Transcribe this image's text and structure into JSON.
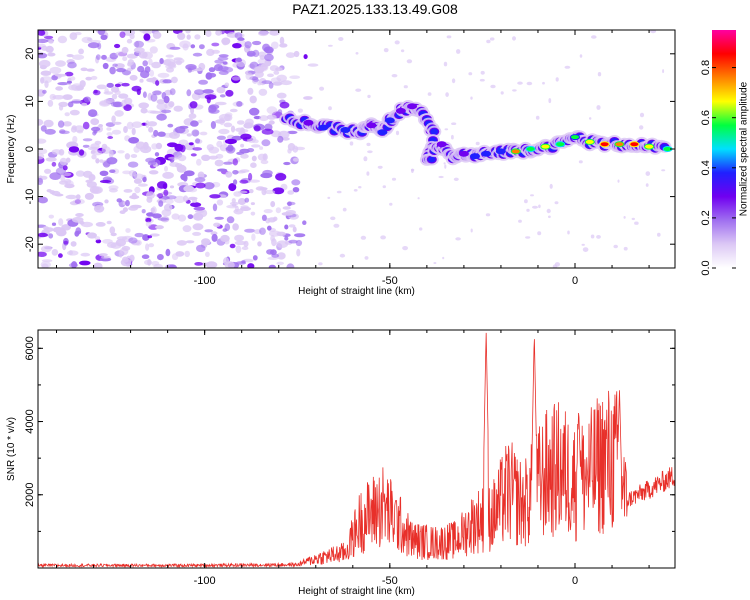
{
  "title": "PAZ1.2025.133.13.49.G08",
  "spectrogram": {
    "type": "heatmap",
    "xlabel": "Height of straight line (km)",
    "ylabel": "Frequency (Hz)",
    "xlim": [
      -145,
      27
    ],
    "ylim": [
      -25,
      25
    ],
    "xticks": [
      "-100",
      "-50",
      "0"
    ],
    "yticks": [
      "20",
      "10",
      "0",
      "-10",
      "-20"
    ],
    "colorbar": {
      "label": "Normalized spectral amplitude",
      "range": [
        0,
        0.95
      ],
      "ticks": [
        "0.0",
        "0.2",
        "0.4",
        "0.6",
        "0.8"
      ],
      "colormap": [
        "#ffffff",
        "#dcc8f5",
        "#a070f0",
        "#7000f0",
        "#2020ff",
        "#00e0ff",
        "#00ff40",
        "#ffff00",
        "#ff8000",
        "#ff0000",
        "#ff00a0"
      ]
    },
    "noise_region_km": [
      -145,
      -70
    ],
    "signal_track": [
      {
        "x": -78,
        "f": 6.0,
        "a": 0.35
      },
      {
        "x": -72,
        "f": 5.5,
        "a": 0.4
      },
      {
        "x": -68,
        "f": 4.5,
        "a": 0.45
      },
      {
        "x": -62,
        "f": 4.0,
        "a": 0.5
      },
      {
        "x": -58,
        "f": 3.5,
        "a": 0.35
      },
      {
        "x": -55,
        "f": 5.0,
        "a": 0.4
      },
      {
        "x": -52,
        "f": 3.5,
        "a": 0.45
      },
      {
        "x": -50,
        "f": 6.0,
        "a": 0.45
      },
      {
        "x": -47,
        "f": 8.0,
        "a": 0.4
      },
      {
        "x": -44,
        "f": 9.0,
        "a": 0.4
      },
      {
        "x": -41,
        "f": 7.0,
        "a": 0.35
      },
      {
        "x": -38,
        "f": 3.0,
        "a": 0.35
      },
      {
        "x": -40,
        "f": -3.0,
        "a": 0.35
      },
      {
        "x": -36,
        "f": 1.0,
        "a": 0.4
      },
      {
        "x": -33,
        "f": -2.0,
        "a": 0.35
      },
      {
        "x": -30,
        "f": -1.0,
        "a": 0.4
      },
      {
        "x": -27,
        "f": -1.5,
        "a": 0.45
      },
      {
        "x": -24,
        "f": -1.0,
        "a": 0.45
      },
      {
        "x": -20,
        "f": -0.5,
        "a": 0.5
      },
      {
        "x": -16,
        "f": -0.5,
        "a": 0.75
      },
      {
        "x": -12,
        "f": 0.0,
        "a": 0.6
      },
      {
        "x": -8,
        "f": 0.5,
        "a": 0.7
      },
      {
        "x": -4,
        "f": 1.0,
        "a": 0.6
      },
      {
        "x": 0,
        "f": 2.5,
        "a": 0.55
      },
      {
        "x": 4,
        "f": 1.5,
        "a": 0.7
      },
      {
        "x": 8,
        "f": 1.0,
        "a": 0.85
      },
      {
        "x": 12,
        "f": 1.0,
        "a": 0.8
      },
      {
        "x": 16,
        "f": 1.0,
        "a": 0.85
      },
      {
        "x": 20,
        "f": 0.5,
        "a": 0.7
      },
      {
        "x": 25,
        "f": 0.0,
        "a": 0.6
      }
    ]
  },
  "snr": {
    "type": "line",
    "xlabel": "Height of straight line (km)",
    "ylabel": "SNR (10 * v/v)",
    "xlim": [
      -145,
      27
    ],
    "ylim": [
      0,
      6500
    ],
    "xticks": [
      "-100",
      "-50",
      "0"
    ],
    "yticks": [
      "6000",
      "4000",
      "2000"
    ],
    "line_color": "#e8302a",
    "envelope": [
      {
        "x": -145,
        "y": 80
      },
      {
        "x": -100,
        "y": 80
      },
      {
        "x": -75,
        "y": 100
      },
      {
        "x": -70,
        "y": 300
      },
      {
        "x": -62,
        "y": 500
      },
      {
        "x": -58,
        "y": 1500
      },
      {
        "x": -52,
        "y": 2000
      },
      {
        "x": -48,
        "y": 1500
      },
      {
        "x": -44,
        "y": 900
      },
      {
        "x": -38,
        "y": 800
      },
      {
        "x": -32,
        "y": 900
      },
      {
        "x": -27,
        "y": 1500
      },
      {
        "x": -22,
        "y": 1700
      },
      {
        "x": -18,
        "y": 2500
      },
      {
        "x": -14,
        "y": 2000
      },
      {
        "x": -8,
        "y": 3000
      },
      {
        "x": -4,
        "y": 3200
      },
      {
        "x": 0,
        "y": 2800
      },
      {
        "x": 4,
        "y": 3000
      },
      {
        "x": 8,
        "y": 3500
      },
      {
        "x": 12,
        "y": 3400
      },
      {
        "x": 14,
        "y": 1900
      },
      {
        "x": 20,
        "y": 2200
      },
      {
        "x": 27,
        "y": 2600
      }
    ],
    "peaks": [
      {
        "x": -24,
        "y": 6500
      },
      {
        "x": -11,
        "y": 6450
      },
      {
        "x": 1,
        "y": 4400
      },
      {
        "x": 12,
        "y": 4900
      }
    ]
  }
}
